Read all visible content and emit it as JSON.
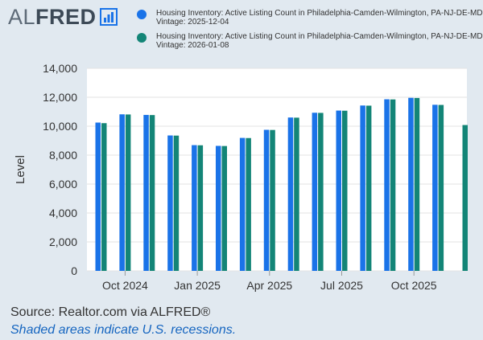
{
  "logo": {
    "text_light": "AL",
    "text_bold": "FRED"
  },
  "legend": [
    {
      "label_line1": "Housing Inventory: Active Listing Count in Philadelphia-Camden-Wilmington, PA-NJ-DE-MD (",
      "label_line2": "Vintage: 2025-12-04",
      "color": "#1a73e8"
    },
    {
      "label_line1": "Housing Inventory: Active Listing Count in Philadelphia-Camden-Wilmington, PA-NJ-DE-MD (",
      "label_line2": "Vintage: 2026-01-08",
      "color": "#138577"
    }
  ],
  "chart_data": {
    "type": "bar",
    "ylabel": "Level",
    "ylim": [
      0,
      14000
    ],
    "yticks": [
      0,
      2000,
      4000,
      6000,
      8000,
      10000,
      12000,
      14000
    ],
    "ytick_labels": [
      "0",
      "2,000",
      "4,000",
      "6,000",
      "8,000",
      "10,000",
      "12,000",
      "14,000"
    ],
    "grid": true,
    "categories": [
      "2024-09",
      "2024-10",
      "2024-11",
      "2024-12",
      "2025-01",
      "2025-02",
      "2025-03",
      "2025-04",
      "2025-05",
      "2025-06",
      "2025-07",
      "2025-08",
      "2025-09",
      "2025-10",
      "2025-11",
      "2025-12"
    ],
    "x_tick_labels": [
      {
        "category": "2024-10",
        "label": "Oct 2024"
      },
      {
        "category": "2025-01",
        "label": "Jan 2025"
      },
      {
        "category": "2025-04",
        "label": "Apr 2025"
      },
      {
        "category": "2025-07",
        "label": "Jul 2025"
      },
      {
        "category": "2025-10",
        "label": "Oct 2025"
      }
    ],
    "series": [
      {
        "values": [
          10250,
          10820,
          10780,
          9360,
          8690,
          8640,
          9190,
          9750,
          10600,
          10930,
          11080,
          11430,
          11860,
          11960,
          11480,
          null
        ]
      },
      {
        "values": [
          10210,
          10810,
          10770,
          9350,
          8680,
          8630,
          9180,
          9740,
          10590,
          10920,
          11070,
          11420,
          11850,
          11950,
          11470,
          10080
        ]
      }
    ]
  },
  "footer": {
    "source": "Source: Realtor.com via ALFRED®",
    "note": "Shaded areas indicate U.S. recessions."
  }
}
